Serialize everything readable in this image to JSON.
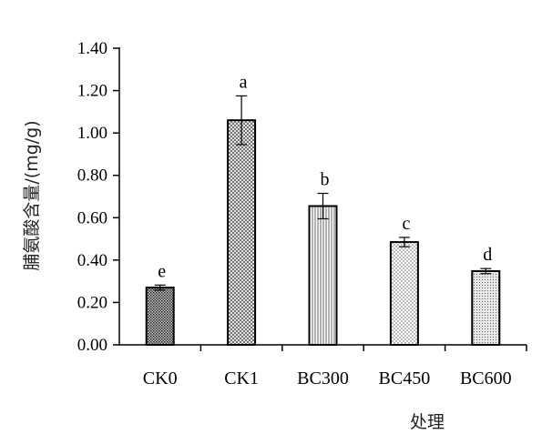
{
  "chart_data": {
    "type": "bar",
    "title": "",
    "xlabel": "处理",
    "ylabel": "脯氨酸含量/(mg/g)",
    "ylim": [
      0,
      1.4
    ],
    "yticks": [
      "0.00",
      "0.20",
      "0.40",
      "0.60",
      "0.80",
      "1.00",
      "1.20",
      "1.40"
    ],
    "categories": [
      "CK0",
      "CK1",
      "BC300",
      "BC450",
      "BC600"
    ],
    "values": [
      0.27,
      1.06,
      0.655,
      0.485,
      0.348
    ],
    "errors": [
      0.012,
      0.115,
      0.06,
      0.022,
      0.012
    ],
    "letters": [
      "e",
      "a",
      "b",
      "c",
      "d"
    ],
    "patterns": [
      "dense-dots",
      "crosshatch",
      "vertical-lines",
      "dots",
      "fine-dots"
    ],
    "grid": false,
    "legend": "none"
  }
}
